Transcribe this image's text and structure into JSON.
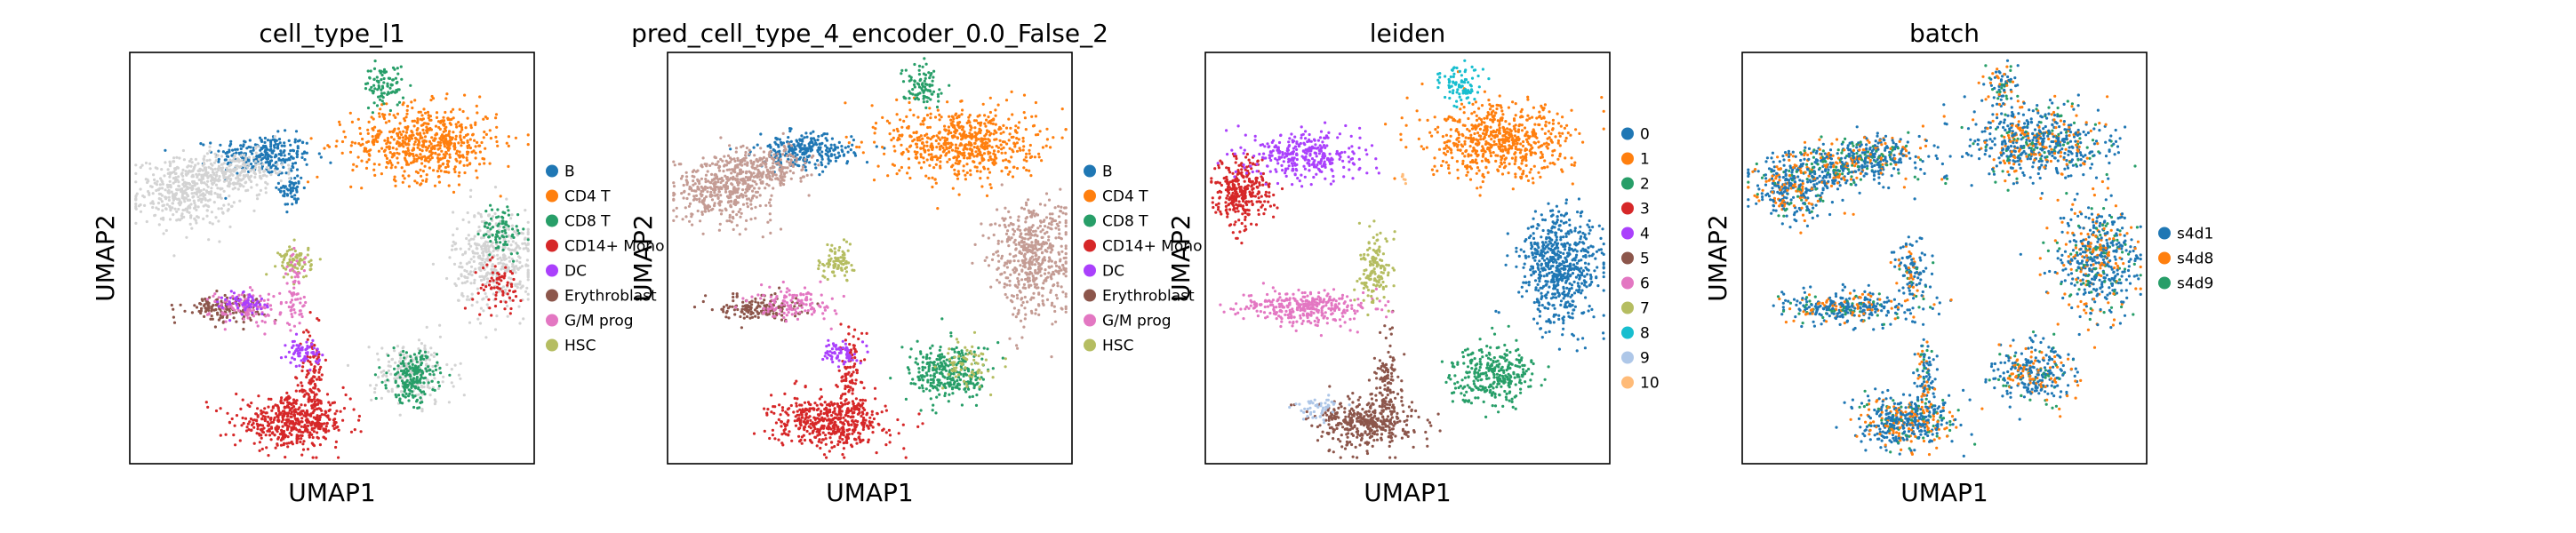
{
  "chart_data": [
    {
      "type": "scatter",
      "title": "cell_type_l1",
      "xlabel": "UMAP1",
      "ylabel": "UMAP2",
      "grid": false,
      "legend_position": "right",
      "legend": [
        {
          "label": "B",
          "color": "#1f77b4"
        },
        {
          "label": "CD4 T",
          "color": "#ff7f0e"
        },
        {
          "label": "CD8 T",
          "color": "#279e68"
        },
        {
          "label": "CD14+ Mono",
          "color": "#d62728"
        },
        {
          "label": "DC",
          "color": "#aa40fc"
        },
        {
          "label": "Erythroblast",
          "color": "#8c564b"
        },
        {
          "label": "G/M prog",
          "color": "#e377c2"
        },
        {
          "label": "HSC",
          "color": "#b5bd61"
        }
      ],
      "clusters": [
        {
          "group": "B",
          "x": 0.33,
          "y": 0.75,
          "sx": 0.06,
          "sy": 0.025,
          "n": 260
        },
        {
          "group": "B",
          "x": 0.4,
          "y": 0.67,
          "sx": 0.015,
          "sy": 0.025,
          "n": 60
        },
        {
          "group": "none",
          "x": 0.14,
          "y": 0.66,
          "sx": 0.06,
          "sy": 0.04,
          "n": 420
        },
        {
          "group": "none",
          "x": 0.26,
          "y": 0.71,
          "sx": 0.06,
          "sy": 0.025,
          "n": 220
        },
        {
          "group": "CD4 T",
          "x": 0.73,
          "y": 0.78,
          "sx": 0.09,
          "sy": 0.045,
          "n": 620
        },
        {
          "group": "CD8 T",
          "x": 0.63,
          "y": 0.92,
          "sx": 0.025,
          "sy": 0.025,
          "n": 90
        },
        {
          "group": "none",
          "x": 0.9,
          "y": 0.5,
          "sx": 0.05,
          "sy": 0.06,
          "n": 420
        },
        {
          "group": "CD14+ Mono",
          "x": 0.91,
          "y": 0.43,
          "sx": 0.03,
          "sy": 0.03,
          "n": 70
        },
        {
          "group": "CD8 T",
          "x": 0.92,
          "y": 0.57,
          "sx": 0.025,
          "sy": 0.03,
          "n": 80
        },
        {
          "group": "none",
          "x": 0.7,
          "y": 0.22,
          "sx": 0.05,
          "sy": 0.04,
          "n": 200
        },
        {
          "group": "CD8 T",
          "x": 0.7,
          "y": 0.21,
          "sx": 0.03,
          "sy": 0.03,
          "n": 200
        },
        {
          "group": "CD14+ Mono",
          "x": 0.4,
          "y": 0.1,
          "sx": 0.07,
          "sy": 0.03,
          "n": 470
        },
        {
          "group": "CD14+ Mono",
          "x": 0.45,
          "y": 0.2,
          "sx": 0.015,
          "sy": 0.06,
          "n": 120
        },
        {
          "group": "DC",
          "x": 0.43,
          "y": 0.27,
          "sx": 0.02,
          "sy": 0.015,
          "n": 70
        },
        {
          "group": "Erythroblast",
          "x": 0.23,
          "y": 0.38,
          "sx": 0.05,
          "sy": 0.015,
          "n": 150
        },
        {
          "group": "G/M prog",
          "x": 0.3,
          "y": 0.38,
          "sx": 0.05,
          "sy": 0.02,
          "n": 120
        },
        {
          "group": "DC",
          "x": 0.29,
          "y": 0.39,
          "sx": 0.03,
          "sy": 0.015,
          "n": 60
        },
        {
          "group": "HSC",
          "x": 0.41,
          "y": 0.49,
          "sx": 0.02,
          "sy": 0.02,
          "n": 80
        },
        {
          "group": "G/M prog",
          "x": 0.41,
          "y": 0.42,
          "sx": 0.012,
          "sy": 0.05,
          "n": 60
        }
      ]
    },
    {
      "type": "scatter",
      "title": "pred_cell_type_4_encoder_0.0_False_2",
      "xlabel": "UMAP1",
      "ylabel": "UMAP2",
      "grid": false,
      "legend_position": "right",
      "legend": [
        {
          "label": "B",
          "color": "#1f77b4"
        },
        {
          "label": "CD4 T",
          "color": "#ff7f0e"
        },
        {
          "label": "CD8 T",
          "color": "#279e68"
        },
        {
          "label": "CD14+ Mono",
          "color": "#d62728"
        },
        {
          "label": "DC",
          "color": "#aa40fc"
        },
        {
          "label": "Erythroblast",
          "color": "#8c564b"
        },
        {
          "label": "G/M prog",
          "color": "#e377c2"
        },
        {
          "label": "HSC",
          "color": "#b5bd61"
        }
      ],
      "clusters": [
        {
          "group": "B",
          "x": 0.34,
          "y": 0.76,
          "sx": 0.06,
          "sy": 0.02,
          "n": 260
        },
        {
          "group": "Mono-like",
          "x": 0.14,
          "y": 0.67,
          "sx": 0.06,
          "sy": 0.04,
          "n": 420
        },
        {
          "group": "Mono-like",
          "x": 0.25,
          "y": 0.72,
          "sx": 0.05,
          "sy": 0.025,
          "n": 200
        },
        {
          "group": "CD4 T",
          "x": 0.73,
          "y": 0.78,
          "sx": 0.09,
          "sy": 0.045,
          "n": 620
        },
        {
          "group": "CD8 T",
          "x": 0.63,
          "y": 0.92,
          "sx": 0.025,
          "sy": 0.025,
          "n": 90
        },
        {
          "group": "Mono-like",
          "x": 0.9,
          "y": 0.5,
          "sx": 0.05,
          "sy": 0.07,
          "n": 520
        },
        {
          "group": "CD8 T",
          "x": 0.7,
          "y": 0.22,
          "sx": 0.05,
          "sy": 0.035,
          "n": 300
        },
        {
          "group": "HSC",
          "x": 0.74,
          "y": 0.24,
          "sx": 0.03,
          "sy": 0.03,
          "n": 70
        },
        {
          "group": "CD14+ Mono",
          "x": 0.4,
          "y": 0.1,
          "sx": 0.07,
          "sy": 0.03,
          "n": 470
        },
        {
          "group": "CD14+ Mono",
          "x": 0.45,
          "y": 0.2,
          "sx": 0.015,
          "sy": 0.06,
          "n": 120
        },
        {
          "group": "DC",
          "x": 0.43,
          "y": 0.27,
          "sx": 0.02,
          "sy": 0.015,
          "n": 70
        },
        {
          "group": "Erythroblast",
          "x": 0.23,
          "y": 0.38,
          "sx": 0.05,
          "sy": 0.015,
          "n": 160
        },
        {
          "group": "G/M prog",
          "x": 0.31,
          "y": 0.39,
          "sx": 0.05,
          "sy": 0.02,
          "n": 130
        },
        {
          "group": "HSC",
          "x": 0.42,
          "y": 0.49,
          "sx": 0.02,
          "sy": 0.02,
          "n": 90
        }
      ]
    },
    {
      "type": "scatter",
      "title": "leiden",
      "xlabel": "UMAP1",
      "ylabel": "UMAP2",
      "grid": false,
      "legend_position": "right",
      "legend": [
        {
          "label": "0",
          "color": "#1f77b4"
        },
        {
          "label": "1",
          "color": "#ff7f0e"
        },
        {
          "label": "2",
          "color": "#279e68"
        },
        {
          "label": "3",
          "color": "#d62728"
        },
        {
          "label": "4",
          "color": "#aa40fc"
        },
        {
          "label": "5",
          "color": "#8c564b"
        },
        {
          "label": "6",
          "color": "#e377c2"
        },
        {
          "label": "7",
          "color": "#b5bd61"
        },
        {
          "label": "8",
          "color": "#17becf"
        },
        {
          "label": "9",
          "color": "#aec7e8"
        },
        {
          "label": "10",
          "color": "#ffbb78"
        }
      ],
      "clusters": [
        {
          "group": "0",
          "x": 0.88,
          "y": 0.48,
          "sx": 0.05,
          "sy": 0.07,
          "n": 620
        },
        {
          "group": "1",
          "x": 0.73,
          "y": 0.78,
          "sx": 0.09,
          "sy": 0.045,
          "n": 620
        },
        {
          "group": "2",
          "x": 0.71,
          "y": 0.22,
          "sx": 0.05,
          "sy": 0.035,
          "n": 320
        },
        {
          "group": "3",
          "x": 0.09,
          "y": 0.66,
          "sx": 0.035,
          "sy": 0.04,
          "n": 320
        },
        {
          "group": "4",
          "x": 0.25,
          "y": 0.75,
          "sx": 0.07,
          "sy": 0.03,
          "n": 320
        },
        {
          "group": "5",
          "x": 0.4,
          "y": 0.1,
          "sx": 0.06,
          "sy": 0.03,
          "n": 380
        },
        {
          "group": "5",
          "x": 0.45,
          "y": 0.2,
          "sx": 0.015,
          "sy": 0.06,
          "n": 110
        },
        {
          "group": "6",
          "x": 0.25,
          "y": 0.38,
          "sx": 0.08,
          "sy": 0.02,
          "n": 330
        },
        {
          "group": "7",
          "x": 0.42,
          "y": 0.47,
          "sx": 0.02,
          "sy": 0.04,
          "n": 140
        },
        {
          "group": "8",
          "x": 0.63,
          "y": 0.92,
          "sx": 0.025,
          "sy": 0.025,
          "n": 90
        },
        {
          "group": "9",
          "x": 0.28,
          "y": 0.14,
          "sx": 0.03,
          "sy": 0.02,
          "n": 50
        },
        {
          "group": "10",
          "x": 0.49,
          "y": 0.69,
          "sx": 0.005,
          "sy": 0.01,
          "n": 6
        }
      ]
    },
    {
      "type": "scatter",
      "title": "batch",
      "xlabel": "UMAP1",
      "ylabel": "UMAP2",
      "grid": false,
      "legend_position": "right",
      "legend": [
        {
          "label": "s4d1",
          "color": "#1f77b4"
        },
        {
          "label": "s4d8",
          "color": "#ff7f0e"
        },
        {
          "label": "s4d9",
          "color": "#279e68"
        }
      ],
      "clusters": [
        {
          "group": "mixed",
          "x": 0.33,
          "y": 0.75,
          "sx": 0.06,
          "sy": 0.025,
          "n": 260
        },
        {
          "group": "mixed",
          "x": 0.12,
          "y": 0.67,
          "sx": 0.05,
          "sy": 0.04,
          "n": 360
        },
        {
          "group": "mixed",
          "x": 0.24,
          "y": 0.72,
          "sx": 0.05,
          "sy": 0.025,
          "n": 200
        },
        {
          "group": "mixed",
          "x": 0.73,
          "y": 0.78,
          "sx": 0.09,
          "sy": 0.045,
          "n": 620
        },
        {
          "group": "mixed",
          "x": 0.64,
          "y": 0.92,
          "sx": 0.02,
          "sy": 0.025,
          "n": 80
        },
        {
          "group": "mixed",
          "x": 0.88,
          "y": 0.5,
          "sx": 0.05,
          "sy": 0.07,
          "n": 520
        },
        {
          "group": "mixed",
          "x": 0.72,
          "y": 0.22,
          "sx": 0.05,
          "sy": 0.035,
          "n": 300
        },
        {
          "group": "mixed",
          "x": 0.4,
          "y": 0.1,
          "sx": 0.06,
          "sy": 0.03,
          "n": 420
        },
        {
          "group": "mixed",
          "x": 0.45,
          "y": 0.2,
          "sx": 0.015,
          "sy": 0.06,
          "n": 120
        },
        {
          "group": "mixed",
          "x": 0.26,
          "y": 0.38,
          "sx": 0.08,
          "sy": 0.02,
          "n": 320
        },
        {
          "group": "mixed",
          "x": 0.42,
          "y": 0.47,
          "sx": 0.02,
          "sy": 0.04,
          "n": 120
        },
        {
          "group": "mixed",
          "x": 0.5,
          "y": 0.69,
          "sx": 0.005,
          "sy": 0.01,
          "n": 6
        }
      ]
    }
  ],
  "colors": {
    "unlabeled": "#d3d3d3",
    "mono_like": "#c49c94",
    "axis": "#000000"
  }
}
